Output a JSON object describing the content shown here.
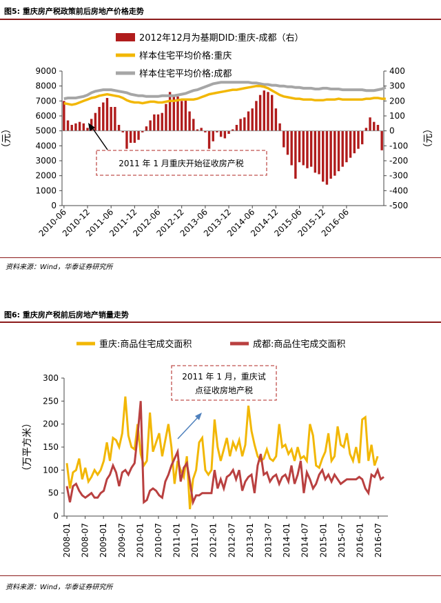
{
  "colors": {
    "bar": "#b01c1c",
    "cq": "#f2b705",
    "cd": "#a6a6a6",
    "cd2": "#b94040",
    "accent": "#8b1a1a",
    "dash": "#c0504d"
  },
  "figure5": {
    "title": "图5:   重庆房产税政策前后房地产价格走势",
    "source": "资料来源：Wind，华泰证券研究所",
    "annotation": "2011 年 1 月重庆开始征收房产税",
    "chart_data": {
      "type": "bar",
      "x_ticks": [
        "2010-06",
        "2010-12",
        "2011-06",
        "2011-12",
        "2012-06",
        "2012-12",
        "2013-06",
        "2013-12",
        "2014-06",
        "2014-12",
        "2015-06",
        "2015-12",
        "2016-06"
      ],
      "ylabel": "元",
      "ylabel_right": "元",
      "ylim_left": [
        0,
        9000
      ],
      "ylim_right": [
        -500,
        400
      ],
      "y_ticks_left": [
        "0",
        "1000",
        "2000",
        "3000",
        "4000",
        "5000",
        "6000",
        "7000",
        "8000",
        "9000"
      ],
      "y_ticks_right": [
        "-500",
        "-400",
        "-300",
        "-200",
        "-100",
        "0",
        "100",
        "200",
        "300",
        "400"
      ],
      "series": [
        {
          "name": "2012年12月为基期DID:重庆-成都（右）",
          "type": "bar",
          "values": [
            200,
            70,
            40,
            50,
            60,
            50,
            20,
            80,
            120,
            160,
            190,
            220,
            160,
            160,
            40,
            -10,
            -120,
            -80,
            -80,
            -60,
            -10,
            30,
            70,
            110,
            110,
            120,
            180,
            260,
            240,
            230,
            200,
            210,
            130,
            80,
            10,
            20,
            -10,
            -120,
            -70,
            -10,
            -40,
            -50,
            -20,
            10,
            40,
            80,
            90,
            130,
            150,
            200,
            240,
            270,
            260,
            240,
            150,
            50,
            -110,
            -160,
            -230,
            -320,
            -210,
            -230,
            -250,
            -240,
            -280,
            -290,
            -340,
            -360,
            -320,
            -300,
            -270,
            -240,
            -210,
            -180,
            -150,
            -120,
            -90,
            20,
            90,
            60,
            40,
            -130
          ]
        },
        {
          "name": "样本住宅平均价格:重庆",
          "type": "line",
          "values": [
            6850,
            6800,
            6750,
            6800,
            6900,
            7000,
            7100,
            7200,
            7250,
            7350,
            7400,
            7450,
            7400,
            7350,
            7300,
            7200,
            7050,
            6950,
            6900,
            6900,
            6850,
            6900,
            6950,
            6950,
            6900,
            6900,
            6950,
            7000,
            7000,
            7050,
            7100,
            7100,
            7100,
            7100,
            7150,
            7250,
            7350,
            7450,
            7500,
            7550,
            7600,
            7650,
            7700,
            7750,
            7750,
            7800,
            7850,
            7900,
            7950,
            8000,
            8000,
            7950,
            7850,
            7700,
            7550,
            7400,
            7300,
            7250,
            7200,
            7150,
            7150,
            7100,
            7100,
            7100,
            7050,
            7050,
            7050,
            7100,
            7100,
            7100,
            7150,
            7100,
            7100,
            7100,
            7100,
            7100,
            7100,
            7150,
            7150,
            7200,
            7200,
            7150,
            7150
          ]
        },
        {
          "name": "样本住宅平均价格:成都",
          "type": "line",
          "values": [
            7150,
            7200,
            7200,
            7200,
            7250,
            7300,
            7400,
            7550,
            7650,
            7700,
            7750,
            7750,
            7750,
            7700,
            7650,
            7600,
            7550,
            7450,
            7400,
            7350,
            7350,
            7300,
            7300,
            7300,
            7300,
            7350,
            7350,
            7350,
            7350,
            7400,
            7450,
            7500,
            7600,
            7700,
            7750,
            7850,
            7950,
            8050,
            8150,
            8200,
            8250,
            8250,
            8250,
            8250,
            8250,
            8250,
            8250,
            8250,
            8200,
            8200,
            8150,
            8100,
            8100,
            8050,
            8050,
            8000,
            8000,
            7950,
            7950,
            7900,
            7900,
            7850,
            7850,
            7850,
            7800,
            7800,
            7850,
            7850,
            7800,
            7800,
            7800,
            7750,
            7750,
            7750,
            7750,
            7750,
            7750,
            7700,
            7700,
            7700,
            7750,
            7800,
            7900
          ]
        }
      ]
    }
  },
  "figure6": {
    "title": "图6:   重庆房产税前后房地产销量走势",
    "source": "资料来源：Wind，华泰证券研究所",
    "annotation_line1": "2011 年 1 月，重庆试",
    "annotation_line2": "点征收房地产税",
    "chart_data": {
      "type": "line",
      "x_ticks": [
        "2008-01",
        "2008-07",
        "2009-01",
        "2009-07",
        "2010-01",
        "2010-07",
        "2011-01",
        "2011-07",
        "2012-01",
        "2012-07",
        "2013-01",
        "2013-07",
        "2014-01",
        "2014-07",
        "2015-01",
        "2015-07",
        "2016-01",
        "2016-07"
      ],
      "ylabel": "万平方米",
      "ylim": [
        0,
        300
      ],
      "y_ticks": [
        "0",
        "50",
        "100",
        "150",
        "200",
        "250",
        "300"
      ],
      "series": [
        {
          "name": "重庆:商品住宅成交面积",
          "values": [
            115,
            60,
            95,
            100,
            125,
            80,
            105,
            75,
            85,
            100,
            90,
            100,
            120,
            160,
            120,
            170,
            165,
            150,
            180,
            260,
            175,
            150,
            145,
            200,
            135,
            110,
            120,
            225,
            140,
            160,
            180,
            130,
            165,
            200,
            150,
            70,
            120,
            100,
            85,
            130,
            15,
            80,
            100,
            160,
            170,
            100,
            90,
            100,
            210,
            150,
            120,
            145,
            170,
            130,
            160,
            145,
            165,
            130,
            155,
            240,
            185,
            155,
            130,
            120,
            125,
            145,
            125,
            120,
            130,
            200,
            150,
            155,
            135,
            145,
            120,
            150,
            125,
            130,
            120,
            200,
            175,
            110,
            105,
            125,
            140,
            180,
            120,
            130,
            195,
            155,
            150,
            180,
            135,
            120,
            150,
            115,
            210,
            215,
            120,
            155,
            110,
            130
          ]
        },
        {
          "name": "成都:商品住宅成交面积",
          "values": [
            65,
            30,
            65,
            70,
            55,
            45,
            40,
            45,
            50,
            40,
            40,
            50,
            55,
            80,
            90,
            110,
            95,
            65,
            95,
            100,
            90,
            105,
            115,
            175,
            250,
            30,
            35,
            55,
            60,
            55,
            45,
            40,
            75,
            90,
            110,
            125,
            140,
            75,
            105,
            115,
            75,
            30,
            45,
            45,
            50,
            50,
            50,
            50,
            100,
            60,
            80,
            60,
            85,
            90,
            100,
            80,
            100,
            55,
            75,
            85,
            90,
            50,
            110,
            135,
            90,
            95,
            75,
            85,
            90,
            70,
            85,
            90,
            75,
            110,
            70,
            90,
            120,
            50,
            95,
            80,
            60,
            70,
            90,
            100,
            80,
            90,
            75,
            90,
            80,
            70,
            75,
            80,
            80,
            80,
            80,
            85,
            80,
            60,
            50,
            90,
            85,
            100,
            80,
            85
          ]
        }
      ]
    }
  }
}
